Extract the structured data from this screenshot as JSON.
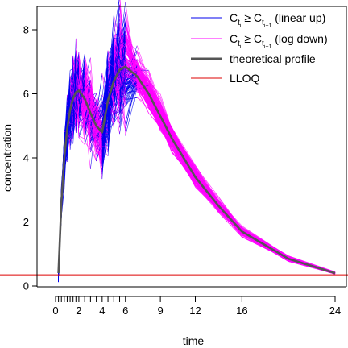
{
  "chart_data": {
    "type": "line",
    "title": "",
    "xlabel": "time",
    "ylabel": "concentration",
    "xlim": [
      -1,
      25
    ],
    "ylim": [
      0,
      8.6
    ],
    "x_ticks_major": [
      0,
      2,
      4,
      6,
      9,
      12,
      16,
      24
    ],
    "x_ticks_minor": [
      0.25,
      0.5,
      0.75,
      1,
      1.25,
      1.5,
      1.75,
      2.5,
      3,
      3.5,
      4.5,
      5,
      5.5
    ],
    "y_ticks": [
      0,
      2,
      4,
      6,
      8
    ],
    "grid": false,
    "legend_position": "top-right",
    "series": [
      {
        "name": "theoretical profile",
        "color": "#555555",
        "x": [
          0.25,
          0.5,
          0.75,
          1,
          1.25,
          1.5,
          1.75,
          2,
          2.5,
          3,
          3.5,
          4,
          4.5,
          5,
          5.5,
          6,
          7,
          8,
          9,
          10,
          12,
          14,
          16,
          20,
          24
        ],
        "y": [
          0.4,
          2.6,
          4.0,
          4.9,
          5.5,
          5.85,
          6.05,
          6.1,
          5.85,
          5.4,
          5.0,
          4.8,
          5.8,
          6.4,
          6.75,
          6.85,
          6.55,
          6.0,
          5.3,
          4.6,
          3.4,
          2.5,
          1.7,
          0.85,
          0.4
        ]
      },
      {
        "name": "LLOQ",
        "color": "#dd0000",
        "y": 0.35
      }
    ],
    "simulated_curves": {
      "count": 150,
      "linear_up_color": "#0000ee",
      "log_down_color": "#ff00ff"
    }
  },
  "legend": [
    {
      "label": "C",
      "sub1": "t",
      "subsub1": "i",
      "mid": " ≥ C",
      "sub2": "t",
      "subsub2": "i−1",
      "tail": " (linear up)",
      "color": "#0000ee",
      "width": 1
    },
    {
      "label": "C",
      "sub1": "t",
      "subsub1": "i",
      "mid": " ≥ C",
      "sub2": "t",
      "subsub2": "i−1",
      "tail": " (log down)",
      "color": "#ff00ff",
      "width": 1
    },
    {
      "text": "theoretical profile",
      "color": "#555555",
      "width": 3
    },
    {
      "text": "LLOQ",
      "color": "#dd0000",
      "width": 1
    }
  ]
}
